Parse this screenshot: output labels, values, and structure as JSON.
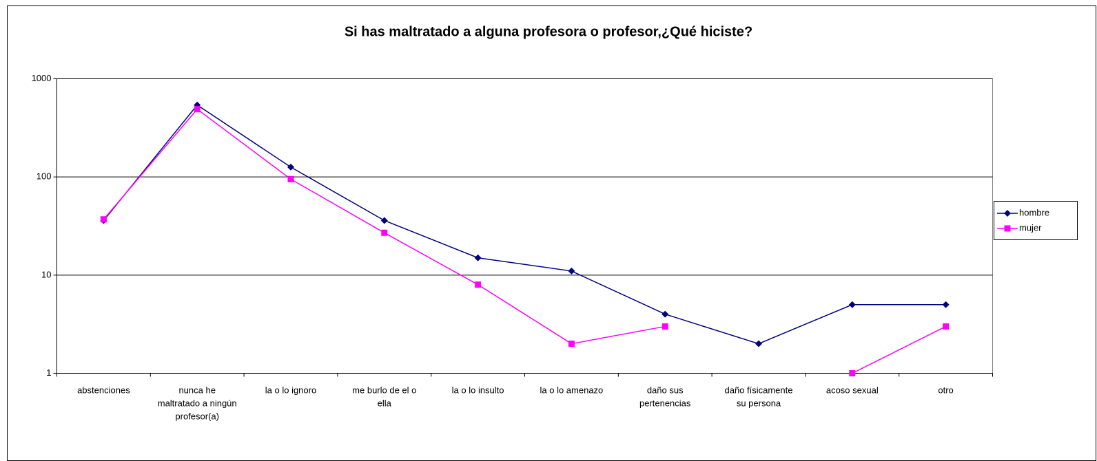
{
  "chart_data": {
    "type": "line",
    "title": "Si has maltratado a alguna profesora o profesor,¿Qué hiciste?",
    "categories": [
      "abstenciones",
      "nunca he maltratado a ningún profesor(a)",
      "la o lo ignoro",
      "me burlo de el o ella",
      "la o lo insulto",
      "la o lo amenazo",
      "daño sus pertenencias",
      "daño físicamente su persona",
      "acoso sexual",
      "otro"
    ],
    "series": [
      {
        "name": "hombre",
        "color": "#000080",
        "marker": "diamond",
        "values": [
          36,
          540,
          126,
          36,
          15,
          11,
          4,
          2,
          5,
          5
        ]
      },
      {
        "name": "mujer",
        "color": "#FF00FF",
        "marker": "square",
        "values": [
          37,
          490,
          95,
          27,
          8,
          2,
          3,
          null,
          1,
          3
        ]
      }
    ],
    "ylim": [
      1,
      1000
    ],
    "yticks": [
      1,
      10,
      100,
      1000
    ],
    "log_scale": true,
    "grid": true,
    "legend": "right"
  }
}
